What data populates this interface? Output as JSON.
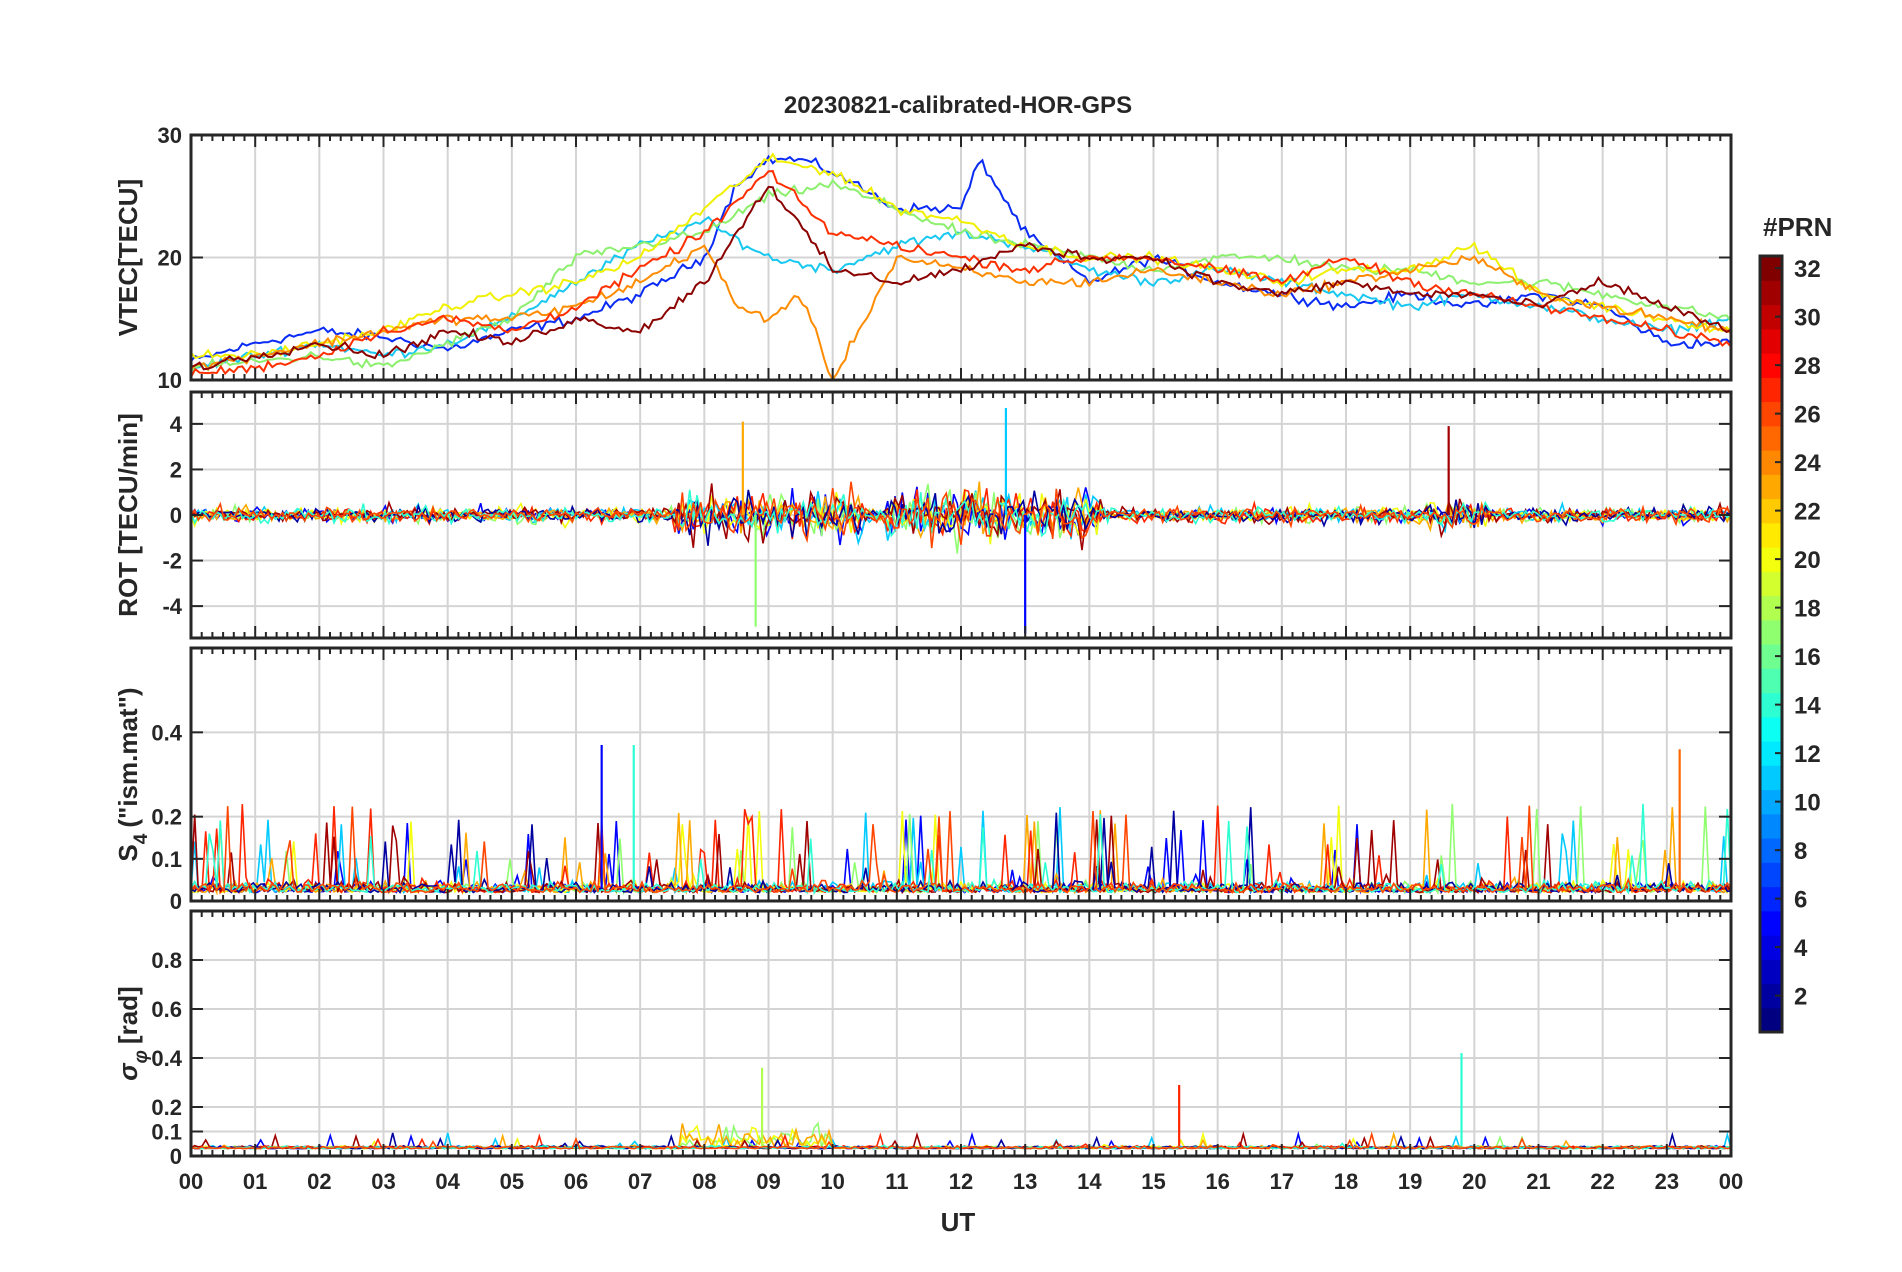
{
  "figure": {
    "title": "20230821-calibrated-HOR-GPS",
    "xlabel": "UT"
  },
  "chart_data": {
    "type": "line",
    "title": "20230821-calibrated-HOR-GPS",
    "xlabel": "UT",
    "x_ticks": [
      "00",
      "01",
      "02",
      "03",
      "04",
      "05",
      "06",
      "07",
      "08",
      "09",
      "10",
      "11",
      "12",
      "13",
      "14",
      "15",
      "16",
      "17",
      "18",
      "19",
      "20",
      "21",
      "22",
      "23",
      "00"
    ],
    "x_range_hours": [
      0,
      24
    ],
    "panels": [
      {
        "id": "vtec",
        "ylabel": "VTEC[TECU]",
        "ylim": [
          10,
          30
        ],
        "yticks": [
          10,
          20,
          30
        ],
        "series": [
          {
            "prn": 5,
            "color": "#0a2bf5",
            "x": [
              0,
              1,
              2,
              3,
              4,
              5,
              6,
              7,
              8,
              8.5,
              9,
              9.5,
              10,
              11,
              12,
              12.3,
              13,
              14,
              15,
              16,
              17,
              18,
              19,
              20,
              21,
              22,
              23,
              24
            ],
            "y": [
              11.5,
              13,
              14,
              13.5,
              12.5,
              14,
              15,
              17,
              20,
              26,
              28,
              28,
              27,
              24,
              24,
              28,
              22,
              18,
              20,
              18,
              17,
              16,
              17,
              16,
              17,
              16,
              13,
              13
            ]
          },
          {
            "prn": 11,
            "color": "#18c8f0",
            "x": [
              0,
              1,
              2,
              3,
              4,
              5,
              6,
              7,
              8,
              9,
              10,
              11,
              12,
              13,
              14,
              15,
              16,
              17,
              18,
              19,
              20,
              21,
              22,
              23,
              24
            ],
            "y": [
              11,
              12,
              13,
              12,
              13,
              15,
              18,
              21,
              23,
              20,
              19,
              21,
              22,
              21,
              19,
              18,
              19,
              18,
              17,
              16,
              17,
              16,
              15,
              14,
              15
            ]
          },
          {
            "prn": 17,
            "color": "#8cf06e",
            "x": [
              0,
              1,
              2,
              3,
              4,
              5,
              6,
              7,
              8,
              9,
              10,
              11,
              12,
              13,
              14,
              15,
              16,
              17,
              18,
              19,
              20,
              21,
              22,
              23,
              24
            ],
            "y": [
              11,
              11.5,
              12,
              11,
              13,
              15,
              20,
              21,
              22,
              25,
              26,
              24,
              22,
              21,
              20,
              19,
              20,
              20,
              19,
              19,
              18,
              18,
              17,
              16,
              15
            ]
          },
          {
            "prn": 20,
            "color": "#f0f000",
            "x": [
              0,
              1,
              2,
              3,
              4,
              5,
              6,
              7,
              8,
              9,
              10,
              11,
              12,
              13,
              14,
              15,
              16,
              17,
              18,
              19,
              20,
              21,
              22,
              23,
              24
            ],
            "y": [
              12,
              12,
              13,
              14,
              16,
              17,
              18,
              20,
              24,
              28,
              27,
              24,
              23,
              21,
              20,
              20,
              19,
              18,
              19,
              19,
              21,
              17,
              16,
              15,
              14
            ]
          },
          {
            "prn": 23,
            "color": "#ff8c00",
            "x": [
              0,
              1,
              2,
              3,
              4,
              5,
              6,
              7,
              8,
              8.5,
              9,
              9.5,
              10,
              11,
              12,
              13,
              14,
              15,
              16,
              17,
              18,
              19,
              20,
              21,
              22,
              23,
              24
            ],
            "y": [
              11,
              12,
              13,
              14,
              15,
              15,
              16,
              18,
              21,
              16,
              15,
              17,
              10,
              20,
              19,
              18,
              18,
              19,
              18,
              17,
              18,
              19,
              20,
              17,
              16,
              15,
              14
            ]
          },
          {
            "prn": 27,
            "color": "#ff3000",
            "x": [
              0,
              1,
              2,
              3,
              4,
              5,
              6,
              7,
              8,
              9,
              10,
              11,
              12,
              13,
              14,
              15,
              16,
              17,
              18,
              19,
              20,
              21,
              22,
              23,
              24
            ],
            "y": [
              10.5,
              11,
              12,
              14,
              15,
              14,
              16,
              19,
              22,
              27,
              22,
              21,
              20,
              19,
              20,
              20,
              19,
              18,
              20,
              18,
              17,
              16,
              15,
              14,
              13
            ]
          },
          {
            "prn": 31,
            "color": "#8b0000",
            "x": [
              0,
              1,
              2,
              3,
              4,
              5,
              6,
              7,
              8,
              9,
              10,
              11,
              12,
              13,
              14,
              15,
              16,
              17,
              18,
              19,
              20,
              21,
              22,
              23,
              24
            ],
            "y": [
              11,
              12,
              13,
              12,
              14,
              13,
              15,
              14,
              18,
              26,
              19,
              18,
              19,
              21,
              20,
              20,
              18,
              17,
              18,
              17,
              17,
              16,
              18,
              16,
              14
            ]
          }
        ]
      },
      {
        "id": "rot",
        "ylabel": "ROT [TECU/min]",
        "ylim": [
          -5.4,
          5.4
        ],
        "yticks": [
          -4,
          -2,
          0,
          2,
          4
        ],
        "peaks": [
          {
            "prn": 11,
            "hour": 12.7,
            "value": 4.7
          },
          {
            "prn": 5,
            "hour": 13.0,
            "value": -5.2
          },
          {
            "prn": 23,
            "hour": 8.6,
            "value": 4.1
          },
          {
            "prn": 17,
            "hour": 8.8,
            "value": -4.9
          },
          {
            "prn": 31,
            "hour": 19.6,
            "value": 3.9
          }
        ]
      },
      {
        "id": "s4",
        "ylabel": "S4 (\"ism.mat\")",
        "ylabel_main": "S",
        "ylabel_sub": "4",
        "ylabel_rest": "(\"ism.mat\")",
        "ylim": [
          0,
          0.6
        ],
        "yticks": [
          0,
          0.1,
          0.2,
          0.4
        ],
        "ytick_labels": [
          "0",
          "0.1",
          "0.2",
          "0.4"
        ],
        "peaks": [
          {
            "prn": 5,
            "hour": 6.4,
            "value": 0.37
          },
          {
            "prn": 14,
            "hour": 6.9,
            "value": 0.37
          },
          {
            "prn": 25,
            "hour": 23.2,
            "value": 0.36
          }
        ]
      },
      {
        "id": "sigphi",
        "ylabel": "σφ [rad]",
        "ylabel_main": "σ",
        "ylabel_sub": "φ",
        "ylabel_rest": "[rad]",
        "ylim": [
          0,
          1
        ],
        "yticks": [
          0,
          0.1,
          0.2,
          0.4,
          0.6,
          0.8
        ],
        "ytick_labels": [
          "0",
          "0.1",
          "0.2",
          "0.4",
          "0.6",
          "0.8"
        ],
        "peaks": [
          {
            "prn": 14,
            "hour": 19.8,
            "value": 0.42
          },
          {
            "prn": 18,
            "hour": 8.9,
            "value": 0.36
          },
          {
            "prn": 27,
            "hour": 15.4,
            "value": 0.29
          }
        ]
      }
    ],
    "colorbar": {
      "label": "#PRN",
      "range": [
        1,
        32
      ],
      "ticks": [
        2,
        4,
        6,
        8,
        10,
        12,
        14,
        16,
        18,
        20,
        22,
        24,
        26,
        28,
        30,
        32
      ],
      "colormap": "jet"
    }
  }
}
